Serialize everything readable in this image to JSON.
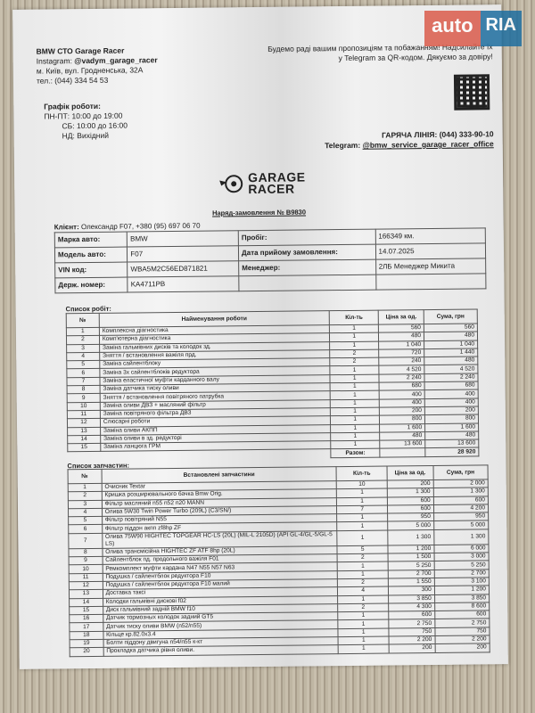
{
  "watermark": {
    "brand_left": "auto",
    "brand_right": "RIA"
  },
  "company": {
    "name": "BMW СТО Garage Racer",
    "instagram_label": "Instagram:",
    "instagram": "@vadym_garage_racer",
    "address": "м. Київ, вул. Гродненська, 32А",
    "phone": "тел.: (044) 334 54 53"
  },
  "schedule": {
    "title": "Графік роботи:",
    "weekdays": "ПН-ПТ: 10:00 до 19:00",
    "saturday": "СБ: 10:00 до 16:00",
    "sunday": "НД: Вихідний"
  },
  "promo": {
    "line1": "Будемо раді вашим пропозиціям та побажанням! Надсилайте їх",
    "line2": "у Telegram за QR-кодом. Дякуємо за довіру!"
  },
  "hotline": {
    "label": "ГАРЯЧА ЛІНІЯ:",
    "value": "(044) 333-90-10"
  },
  "telegram": {
    "label": "Telegram:",
    "value": "@bmw_service_garage_racer_office"
  },
  "logo": {
    "line1": "GARAGE",
    "line2": "RACER"
  },
  "order_title": "Наряд-замовлення № B9830",
  "client": {
    "label": "Клієнт:",
    "value": "Олександр F07, +380 (95) 697 06 70"
  },
  "vehicle": [
    [
      "Марка авто:",
      "BMW",
      "Пробіг:",
      "166349 км."
    ],
    [
      "Модель авто:",
      "F07",
      "Дата прийому замовлення:",
      "14.07.2025"
    ],
    [
      "VIN код:",
      "WBA5M2C56ED871821",
      "Менеджер:",
      "2ЛБ Менеджер Микита"
    ],
    [
      "Держ. номер:",
      "KA4711PB",
      "",
      ""
    ]
  ],
  "works": {
    "title": "Список робіт:",
    "headers": [
      "№",
      "Найменування роботи",
      "Кіл-ть",
      "Ціна за од.",
      "Сума, грн"
    ],
    "rows": [
      [
        "1",
        "Комплексна діагностика",
        "1",
        "560",
        "560"
      ],
      [
        "2",
        "Комп'ютерна діагностика",
        "1",
        "480",
        "480"
      ],
      [
        "3",
        "Заміна гальмівних дисків та колодок зд.",
        "1",
        "1 040",
        "1 040"
      ],
      [
        "4",
        "Зняття / встановлення важіля прд.",
        "2",
        "720",
        "1 440"
      ],
      [
        "5",
        "Заміна сайлентблоку",
        "2",
        "240",
        "480"
      ],
      [
        "6",
        "Заміна 3х сайлентблоків редуктора",
        "1",
        "4 520",
        "4 520"
      ],
      [
        "7",
        "Заміна еластичної муфти карданного валу",
        "1",
        "2 240",
        "2 240"
      ],
      [
        "8",
        "Заміна датчика тиску оливи",
        "1",
        "680",
        "680"
      ],
      [
        "9",
        "Зняття / встановлення повітряного патрубка",
        "1",
        "400",
        "400"
      ],
      [
        "10",
        "Заміна оливи ДВЗ + масляний фільтр",
        "1",
        "400",
        "400"
      ],
      [
        "11",
        "Заміна повітряного фільтра ДВЗ",
        "1",
        "200",
        "200"
      ],
      [
        "12",
        "Слюсарні роботи",
        "1",
        "800",
        "800"
      ],
      [
        "13",
        "Заміна оливи АКПП",
        "1",
        "1 600",
        "1 600"
      ],
      [
        "14",
        "Заміна оливи в зд. редукторі",
        "1",
        "480",
        "480"
      ],
      [
        "15",
        "Заміна ланцюга ГРМ",
        "1",
        "13 600",
        "13 600"
      ]
    ],
    "total_label": "Разом:",
    "total": "28 920"
  },
  "parts": {
    "title": "Список запчастин:",
    "headers": [
      "№",
      "Встановлені запчастини",
      "Кіл-ть",
      "Ціна за од.",
      "Сума, грн"
    ],
    "rows": [
      [
        "1",
        "Очисник Textar",
        "10",
        "200",
        "2 000"
      ],
      [
        "2",
        "Кришка розширювального бачка Bmw Orig.",
        "1",
        "1 300",
        "1 300"
      ],
      [
        "3",
        "Фільтр масляний n55 n52 n20 MANN",
        "1",
        "600",
        "600"
      ],
      [
        "4",
        "Олива 5W30 Twin Power Turbo (209L) (C3/SN/)",
        "7",
        "600",
        "4 200"
      ],
      [
        "5",
        "Фільтр повітряний N55",
        "1",
        "950",
        "950"
      ],
      [
        "6",
        "Фільтр піддон акпп zf8hp ZF",
        "1",
        "5 000",
        "5 000"
      ],
      [
        "7",
        "Олива 75W90 HIGHTEC TOPGEAR HC-LS (20L) (MIL-L 2105D) (API GL-4/GL-5/GL-5 LS)",
        "1",
        "1 300",
        "1 300"
      ],
      [
        "8",
        "Олива трансмісійна HIGHTEC ZF ATF 8hp (20L)",
        "5",
        "1 200",
        "6 000"
      ],
      [
        "9",
        "Сайлентблок пд. продольного важіля F01",
        "2",
        "1 500",
        "3 000"
      ],
      [
        "10",
        "Ремкомплект муфти кардана N47 N55 N57 N63",
        "1",
        "5 250",
        "5 250"
      ],
      [
        "11",
        "Подушка / сайлентблок редуктора F10",
        "1",
        "2 700",
        "2 700"
      ],
      [
        "12",
        "Подушка / сайлентблок редуктора F10 малий",
        "2",
        "1 550",
        "3 100"
      ],
      [
        "13",
        "Доставка таксі",
        "4",
        "300",
        "1 200"
      ],
      [
        "14",
        "Колодки гальмівні дискові f02",
        "1",
        "3 850",
        "3 850"
      ],
      [
        "15",
        "Диск гальмівний задній BMW f10",
        "2",
        "4 300",
        "8 600"
      ],
      [
        "16",
        "Датчик тормозных колодок задний GT5",
        "1",
        "600",
        "600"
      ],
      [
        "17",
        "Датчик тиску оливи BMW (n52/n55)",
        "1",
        "2 750",
        "2 750"
      ],
      [
        "18",
        "Кільце кр.82.0x3.4",
        "1",
        "750",
        "750"
      ],
      [
        "19",
        "Болти піддону двигуна n54/n55 к-кт",
        "1",
        "2 200",
        "2 200"
      ],
      [
        "20",
        "Прокладка датчика рівня оливи.",
        "1",
        "200",
        "200"
      ]
    ]
  }
}
